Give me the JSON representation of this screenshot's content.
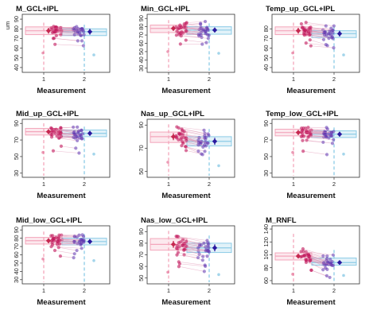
{
  "chart_data": [
    {
      "type": "scatter",
      "title": "M_GCL+IPL",
      "ylabel": "um",
      "xlabel": "Measurement",
      "ylim": [
        35,
        95
      ],
      "yticks": [
        40,
        50,
        60,
        70,
        80,
        90
      ],
      "xticks": [
        "1",
        "2"
      ],
      "series": [
        {
          "name": "1",
          "median": 78,
          "q1": 74,
          "q3": 82,
          "min": 55,
          "max": 88
        },
        {
          "name": "2",
          "median": 77,
          "q1": 73,
          "q3": 80,
          "min": 50,
          "max": 86
        }
      ]
    },
    {
      "type": "scatter",
      "title": "Min_GCL+IPL",
      "ylabel": "",
      "xlabel": "Measurement",
      "ylim": [
        25,
        95
      ],
      "yticks": [
        30,
        40,
        50,
        60,
        70,
        80,
        90
      ],
      "xticks": [
        "1",
        "2"
      ],
      "series": [
        {
          "name": "1",
          "median": 78,
          "q1": 73,
          "q3": 82,
          "min": 50,
          "max": 90
        },
        {
          "name": "2",
          "median": 76,
          "q1": 71,
          "q3": 80,
          "min": 45,
          "max": 86
        }
      ]
    },
    {
      "type": "scatter",
      "title": "Temp_up_GCL+IPL",
      "ylabel": "",
      "xlabel": "Measurement",
      "ylim": [
        35,
        95
      ],
      "yticks": [
        40,
        50,
        60,
        70,
        80
      ],
      "xticks": [
        "1",
        "2"
      ],
      "series": [
        {
          "name": "1",
          "median": 78,
          "q1": 74,
          "q3": 82,
          "min": 55,
          "max": 88
        },
        {
          "name": "2",
          "median": 75,
          "q1": 71,
          "q3": 78,
          "min": 50,
          "max": 84
        }
      ]
    },
    {
      "type": "scatter",
      "title": "Mid_up_GCL+IPL",
      "ylabel": "",
      "xlabel": "Measurement",
      "ylim": [
        25,
        95
      ],
      "yticks": [
        30,
        50,
        70,
        90
      ],
      "xticks": [
        "1",
        "2"
      ],
      "series": [
        {
          "name": "1",
          "median": 80,
          "q1": 76,
          "q3": 84,
          "min": 55,
          "max": 92
        },
        {
          "name": "2",
          "median": 78,
          "q1": 74,
          "q3": 82,
          "min": 50,
          "max": 88
        }
      ]
    },
    {
      "type": "scatter",
      "title": "Nas_up_GCL+IPL",
      "ylabel": "",
      "xlabel": "Measurement",
      "ylim": [
        45,
        95
      ],
      "yticks": [
        50,
        70,
        90
      ],
      "xticks": [
        "1",
        "2"
      ],
      "series": [
        {
          "name": "1",
          "median": 80,
          "q1": 75,
          "q3": 84,
          "min": 58,
          "max": 92
        },
        {
          "name": "2",
          "median": 76,
          "q1": 72,
          "q3": 80,
          "min": 52,
          "max": 88
        }
      ]
    },
    {
      "type": "scatter",
      "title": "Temp_low_GCL+IPL",
      "ylabel": "",
      "xlabel": "Measurement",
      "ylim": [
        25,
        95
      ],
      "yticks": [
        30,
        50,
        70,
        90
      ],
      "xticks": [
        "1",
        "2"
      ],
      "series": [
        {
          "name": "1",
          "median": 79,
          "q1": 75,
          "q3": 83,
          "min": 55,
          "max": 90
        },
        {
          "name": "2",
          "median": 77,
          "q1": 73,
          "q3": 81,
          "min": 50,
          "max": 87
        }
      ]
    },
    {
      "type": "scatter",
      "title": "Mid_low_GCL+IPL",
      "ylabel": "",
      "xlabel": "Measurement",
      "ylim": [
        25,
        95
      ],
      "yticks": [
        30,
        40,
        50,
        60,
        70,
        80,
        90
      ],
      "xticks": [
        "1",
        "2"
      ],
      "series": [
        {
          "name": "1",
          "median": 77,
          "q1": 73,
          "q3": 81,
          "min": 55,
          "max": 90
        },
        {
          "name": "2",
          "median": 76,
          "q1": 72,
          "q3": 80,
          "min": 50,
          "max": 87
        }
      ]
    },
    {
      "type": "scatter",
      "title": "Nas_low_GCL+IPL",
      "ylabel": "",
      "xlabel": "Measurement",
      "ylim": [
        45,
        95
      ],
      "yticks": [
        50,
        60,
        70,
        80,
        90
      ],
      "xticks": [
        "1",
        "2"
      ],
      "series": [
        {
          "name": "1",
          "median": 79,
          "q1": 74,
          "q3": 84,
          "min": 55,
          "max": 92
        },
        {
          "name": "2",
          "median": 76,
          "q1": 72,
          "q3": 80,
          "min": 50,
          "max": 88
        }
      ]
    },
    {
      "type": "scatter",
      "title": "M_RNFL",
      "ylabel": "",
      "xlabel": "Measurement",
      "ylim": [
        55,
        145
      ],
      "yticks": [
        60,
        80,
        100,
        120,
        140
      ],
      "xticks": [
        "1",
        "2"
      ],
      "series": [
        {
          "name": "1",
          "median": 98,
          "q1": 92,
          "q3": 103,
          "min": 70,
          "max": 135
        },
        {
          "name": "2",
          "median": 88,
          "q1": 84,
          "q3": 95,
          "min": 65,
          "max": 110
        }
      ]
    }
  ],
  "colors": {
    "m1_box": "#f3a6bb",
    "m2_box": "#8ccbe6",
    "m1_point": "#c2185b",
    "m2_point": "#5e35b1",
    "m1_light": "#e05a86",
    "m2_light": "#8e7cc3",
    "m1_summary": "#c62850",
    "m2_summary": "#2a1aa0",
    "lines": "#e19ab8"
  }
}
